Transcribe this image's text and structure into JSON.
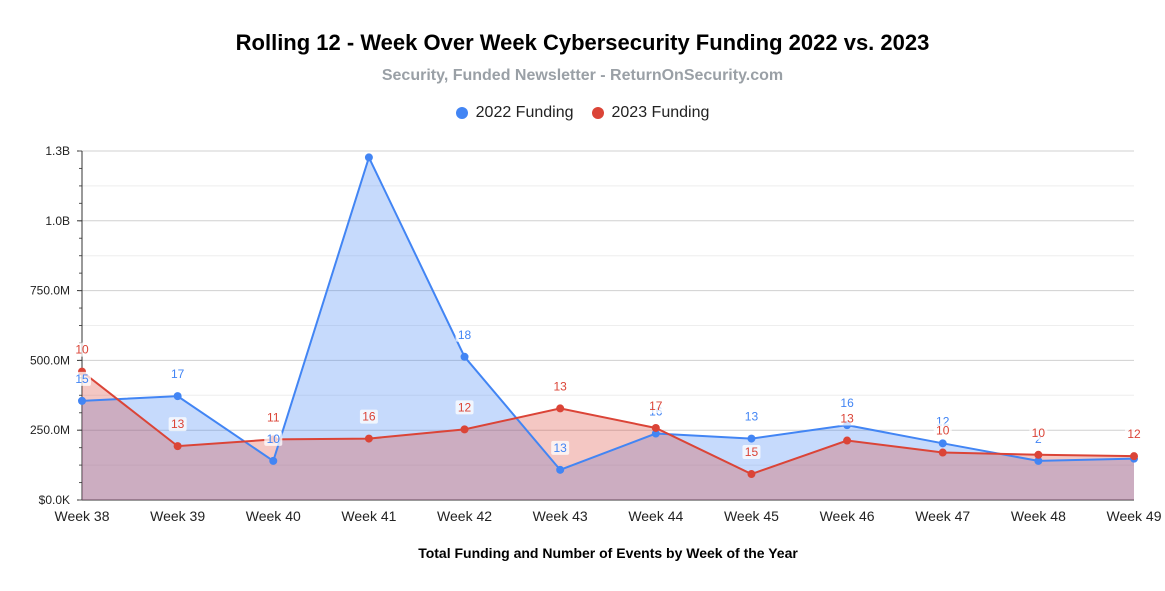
{
  "chart_data": {
    "type": "area",
    "title": "Rolling 12 - Week Over Week Cybersecurity Funding 2022 vs. 2023",
    "subtitle": "Security, Funded Newsletter - ReturnOnSecurity.com",
    "xlabel": "Total Funding and Number of Events by Week of the Year",
    "ylabel": "",
    "categories": [
      "Week 38",
      "Week 39",
      "Week 40",
      "Week 41",
      "Week 42",
      "Week 43",
      "Week 44",
      "Week 45",
      "Week 46",
      "Week 47",
      "Week 48",
      "Week 49"
    ],
    "ylim": [
      0,
      1250000000
    ],
    "yticks": [
      {
        "value": 0,
        "label": "$0.0K"
      },
      {
        "value": 250000000,
        "label": "250.0M"
      },
      {
        "value": 500000000,
        "label": "500.0M"
      },
      {
        "value": 750000000,
        "label": "750.0M"
      },
      {
        "value": 1000000000,
        "label": "1.0B"
      },
      {
        "value": 1250000000,
        "label": "1.3B"
      }
    ],
    "grid": true,
    "legend_position": "top",
    "series": [
      {
        "name": "2022 Funding",
        "color": "#4285f4",
        "values": [
          355000000,
          372000000,
          140000000,
          1227000000,
          513000000,
          108000000,
          238000000,
          220000000,
          268000000,
          203000000,
          140000000,
          148000000
        ],
        "labels": [
          "15",
          "17",
          "10",
          "",
          "18",
          "13",
          "16",
          "13",
          "16",
          "12",
          "2",
          ""
        ]
      },
      {
        "name": "2023 Funding",
        "color": "#db4437",
        "values": [
          460000000,
          193000000,
          217000000,
          220000000,
          253000000,
          328000000,
          258000000,
          93000000,
          213000000,
          170000000,
          162000000,
          157000000
        ],
        "labels": [
          "10",
          "13",
          "11",
          "16",
          "12",
          "13",
          "17",
          "15",
          "13",
          "10",
          "10",
          "12"
        ]
      }
    ]
  }
}
